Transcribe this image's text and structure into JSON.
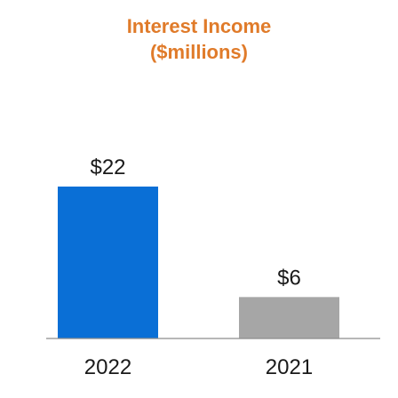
{
  "colors": {
    "title": "#E07B2A",
    "axis": "#8C8C8C"
  },
  "chart_data": {
    "type": "bar",
    "title": "Interest Income",
    "subtitle": "($millions)",
    "xlabel": "",
    "ylabel": "",
    "categories": [
      "2022",
      "2021"
    ],
    "values": [
      22,
      6
    ],
    "value_labels": [
      "$22",
      "$6"
    ],
    "bar_colors": [
      "#0A6FD6",
      "#A6A6A6"
    ],
    "ylim": [
      0,
      22
    ],
    "grid": false,
    "legend": "none"
  }
}
